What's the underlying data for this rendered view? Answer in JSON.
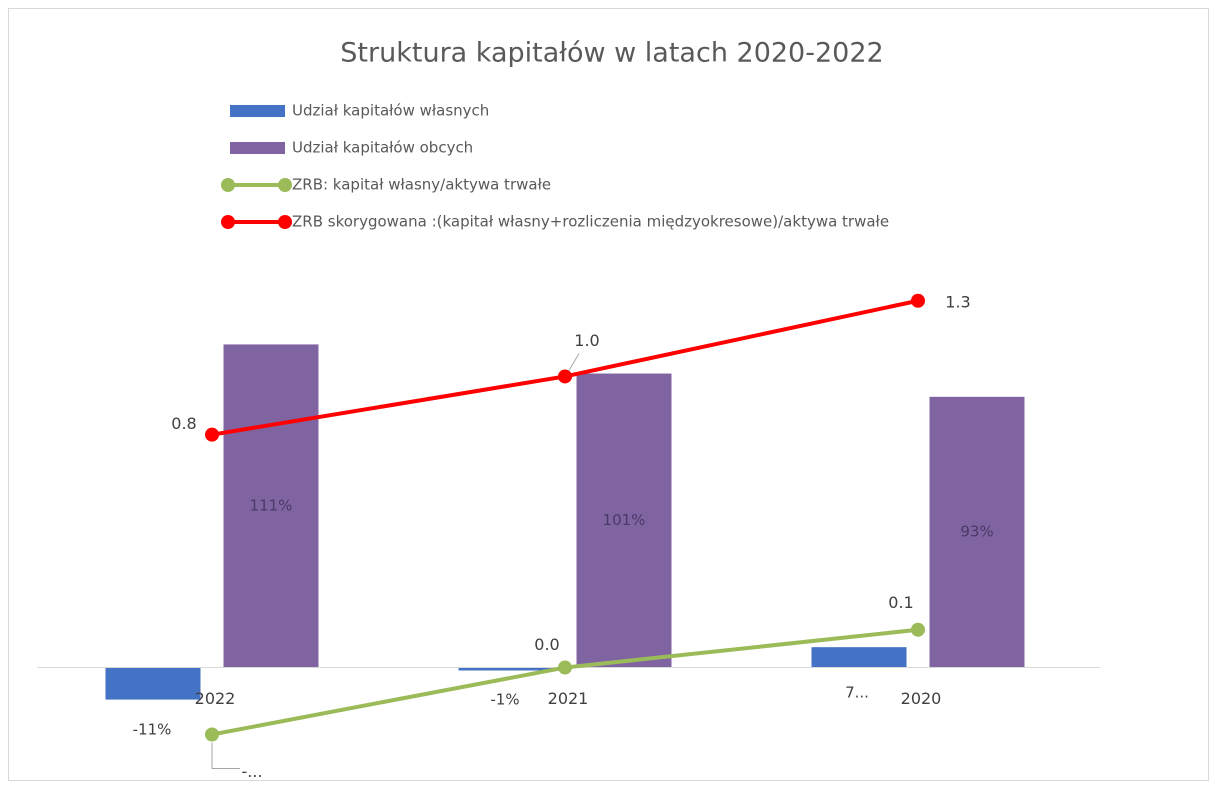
{
  "chart_data": {
    "type": "bar-line",
    "title": "Struktura kapitałów w latach 2020-2022",
    "categories": [
      "2022",
      "2021",
      "2020"
    ],
    "ylim": [
      -40,
      140
    ],
    "y2lim": [
      -0.4,
      1.4
    ],
    "series": [
      {
        "name": "Udział kapitałów własnych",
        "type": "bar",
        "color": "#4472c4",
        "values": [
          -11,
          -1,
          7
        ],
        "value_labels": [
          "-11%",
          "-1%",
          "7..."
        ]
      },
      {
        "name": "Udział kapitałów obcych",
        "type": "bar",
        "color": "#8064a2",
        "values": [
          111,
          101,
          93
        ],
        "value_labels": [
          "111%",
          "101%",
          "93%"
        ]
      },
      {
        "name": "ZRB: kapitał własny/aktywa trwałe",
        "type": "line",
        "axis": "y2",
        "color": "#9bbb59",
        "values": [
          -0.23,
          0.0,
          0.13
        ],
        "value_labels": [
          "-...",
          "0.0",
          "0.1"
        ]
      },
      {
        "name": "ZRB skorygowana :(kapitał własny+rozliczenia międzyokresowe)/aktywa trwałe",
        "type": "line",
        "axis": "y2",
        "color": "#ff0000",
        "values": [
          0.8,
          1.0,
          1.26
        ],
        "value_labels": [
          "0.8",
          "1.0",
          "1.3"
        ]
      }
    ]
  }
}
